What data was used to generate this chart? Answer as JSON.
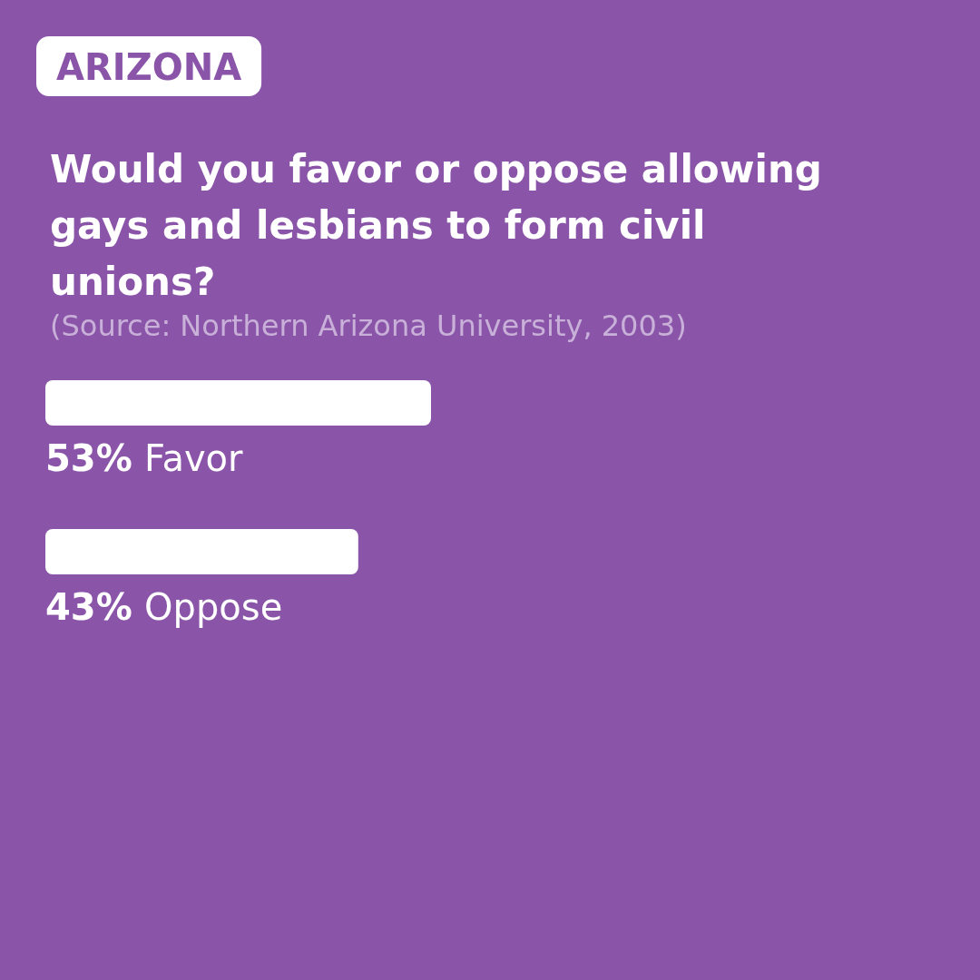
{
  "chart_data": {
    "type": "bar",
    "orientation": "horizontal",
    "subtitle": "ARIZONA",
    "title": "Would you favor or oppose allowing gays and lesbians to form civil unions?",
    "annotations": [
      "(Source: Northern Arizona University, 2003)"
    ],
    "categories": [
      "Favor",
      "Oppose"
    ],
    "values": [
      53,
      43
    ],
    "value_labels": [
      "53%",
      "43%"
    ],
    "color": "#ffffff"
  }
}
